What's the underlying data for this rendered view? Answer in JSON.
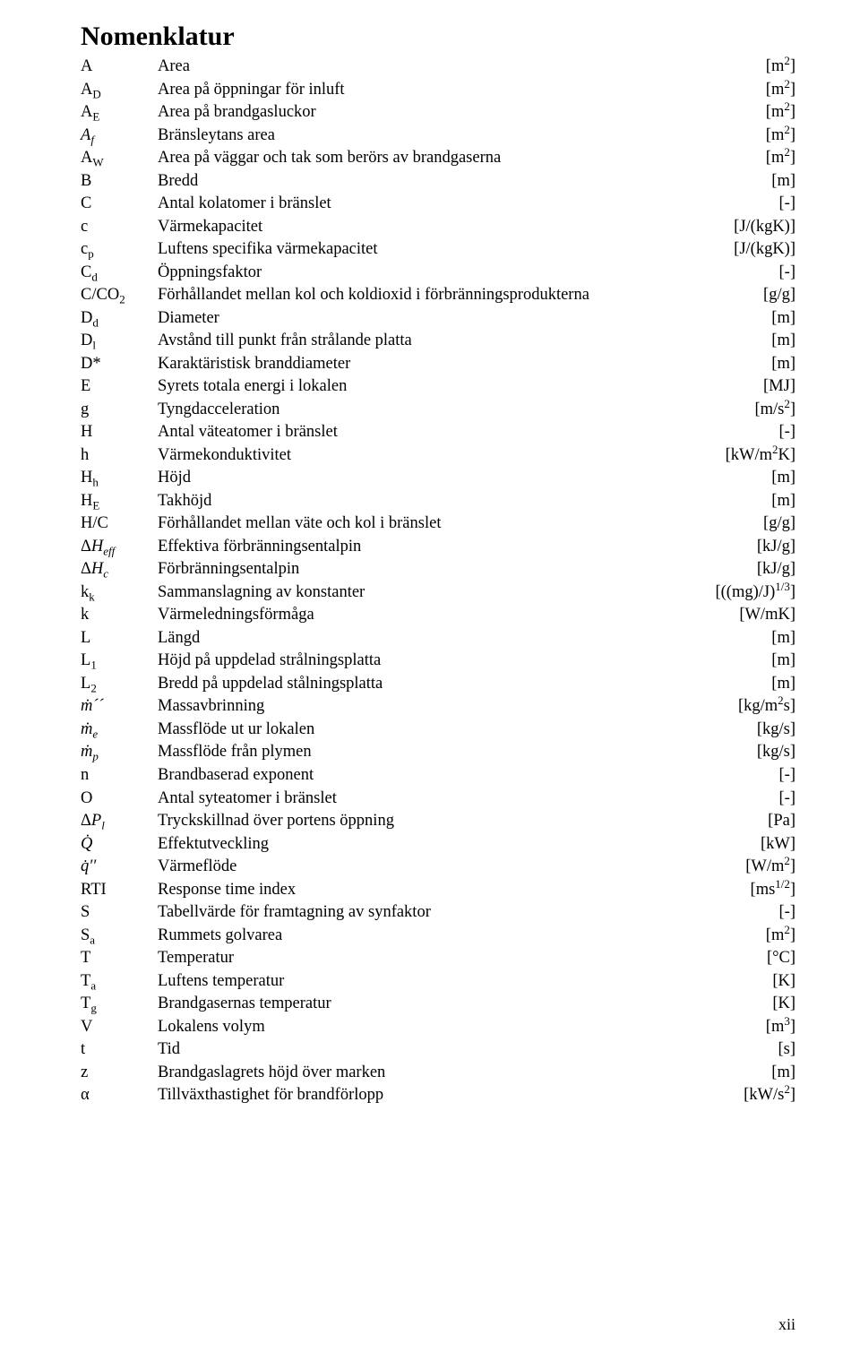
{
  "title": "Nomenklatur",
  "page_number": "xii",
  "rows": [
    {
      "symbol": "A",
      "desc": "Area",
      "unit": "[m<sup>2</sup>]"
    },
    {
      "symbol": "A<sub>D</sub>",
      "desc": "Area på öppningar för inluft",
      "unit": "[m<sup>2</sup>]"
    },
    {
      "symbol": "A<sub>E</sub>",
      "desc": "Area på brandgasluckor",
      "unit": "[m<sup>2</sup>]"
    },
    {
      "symbol": "<i>A<sub>f</sub></i>",
      "desc": "Bränsleytans area",
      "unit": "[m<sup>2</sup>]"
    },
    {
      "symbol": "A<sub>W</sub>",
      "desc": "Area på väggar och tak som berörs av brandgaserna",
      "unit": "[m<sup>2</sup>]"
    },
    {
      "symbol": "B",
      "desc": "Bredd",
      "unit": "[m]"
    },
    {
      "symbol": "C",
      "desc": "Antal kolatomer i bränslet",
      "unit": "[-]"
    },
    {
      "symbol": "c",
      "desc": "Värmekapacitet",
      "unit": "[J/(kgK)]"
    },
    {
      "symbol": "c<sub>p</sub>",
      "desc": "Luftens specifika värmekapacitet",
      "unit": "[J/(kgK)]"
    },
    {
      "symbol": "C<sub>d</sub>",
      "desc": "Öppningsfaktor",
      "unit": "[-]"
    },
    {
      "symbol": "C/CO<sub>2</sub>",
      "desc": "Förhållandet mellan kol och koldioxid i förbränningsprodukterna",
      "unit": "[g/g]"
    },
    {
      "symbol": "D<sub>d</sub>",
      "desc": "Diameter",
      "unit": "[m]"
    },
    {
      "symbol": "D<sub>l</sub>",
      "desc": "Avstånd till punkt från strålande platta",
      "unit": "[m]"
    },
    {
      "symbol": "D*",
      "desc": "Karaktäristisk branddiameter",
      "unit": "[m]"
    },
    {
      "symbol": "E",
      "desc": "Syrets totala energi i lokalen",
      "unit": "[MJ]"
    },
    {
      "symbol": "g",
      "desc": "Tyngdacceleration",
      "unit": "[m/s<sup>2</sup>]"
    },
    {
      "symbol": "H",
      "desc": "Antal väteatomer i bränslet",
      "unit": "[-]"
    },
    {
      "symbol": "h",
      "desc": "Värmekonduktivitet",
      "unit": "[kW/m<sup>2</sup>K]"
    },
    {
      "symbol": "H<sub>h</sub>",
      "desc": "Höjd",
      "unit": "[m]"
    },
    {
      "symbol": "H<sub>E</sub>",
      "desc": "Takhöjd",
      "unit": "[m]"
    },
    {
      "symbol": "H/C",
      "desc": "Förhållandet mellan väte och kol i bränslet",
      "unit": "[g/g]"
    },
    {
      "symbol": "Δ<i>H<sub>eff</sub></i>",
      "desc": "Effektiva förbränningsentalpin",
      "unit": "[kJ/g]"
    },
    {
      "symbol": "Δ<i>H<sub>c</sub></i>",
      "desc": "Förbränningsentalpin",
      "unit": "[kJ/g]"
    },
    {
      "symbol": "k<sub>k</sub>",
      "desc": "Sammanslagning av konstanter",
      "unit": "[((mg)/J)<sup>1/3</sup>]"
    },
    {
      "symbol": "k",
      "desc": "Värmeledningsförmåga",
      "unit": "[W/mK]"
    },
    {
      "symbol": "L",
      "desc": "Längd",
      "unit": "[m]"
    },
    {
      "symbol": "L<sub>1</sub>",
      "desc": "Höjd på uppdelad strålningsplatta",
      "unit": "[m]"
    },
    {
      "symbol": "L<sub>2</sub>",
      "desc": "Bredd på uppdelad stålningsplatta",
      "unit": "[m]"
    },
    {
      "symbol": "<i>ṁ´´</i>",
      "desc": "Massavbrinning",
      "unit": "[kg/m<sup>2</sup>s]"
    },
    {
      "symbol": "<i>ṁ<sub>e</sub></i>",
      "desc": "Massflöde ut ur lokalen",
      "unit": "[kg/s]"
    },
    {
      "symbol": "<i>ṁ<sub>p</sub></i>",
      "desc": "Massflöde från plymen",
      "unit": "[kg/s]"
    },
    {
      "symbol": "n",
      "desc": "Brandbaserad exponent",
      "unit": "[-]"
    },
    {
      "symbol": "O",
      "desc": "Antal syteatomer i bränslet",
      "unit": "[-]"
    },
    {
      "symbol": "Δ<i>P<sub>l</sub></i>",
      "desc": "Tryckskillnad över portens öppning",
      "unit": "[Pa]"
    },
    {
      "symbol": "<i>Q̇</i>",
      "desc": "Effektutveckling",
      "unit": "[kW]"
    },
    {
      "symbol": "<i>q̇′′</i>",
      "desc": "Värmeflöde",
      "unit": "[W/m<sup>2</sup>]"
    },
    {
      "symbol": "RTI",
      "desc": "Response time index",
      "unit": "[ms<sup>1/2</sup>]"
    },
    {
      "symbol": "S",
      "desc": "Tabellvärde för framtagning av synfaktor",
      "unit": "[-]"
    },
    {
      "symbol": "S<sub>a</sub>",
      "desc": "Rummets golvarea",
      "unit": "[m<sup>2</sup>]"
    },
    {
      "symbol": "T",
      "desc": "Temperatur",
      "unit": "[°C]"
    },
    {
      "symbol": "T<sub>a</sub>",
      "desc": "Luftens temperatur",
      "unit": "[K]"
    },
    {
      "symbol": "T<sub>g</sub>",
      "desc": "Brandgasernas temperatur",
      "unit": "[K]"
    },
    {
      "symbol": "V",
      "desc": "Lokalens volym",
      "unit": "[m<sup>3</sup>]"
    },
    {
      "symbol": "t",
      "desc": "Tid",
      "unit": "[s]"
    },
    {
      "symbol": "z",
      "desc": "Brandgaslagrets höjd över marken",
      "unit": "[m]"
    },
    {
      "symbol": "α",
      "desc": "Tillväxthastighet för brandförlopp",
      "unit": "[kW/s<sup>2</sup>]"
    }
  ]
}
